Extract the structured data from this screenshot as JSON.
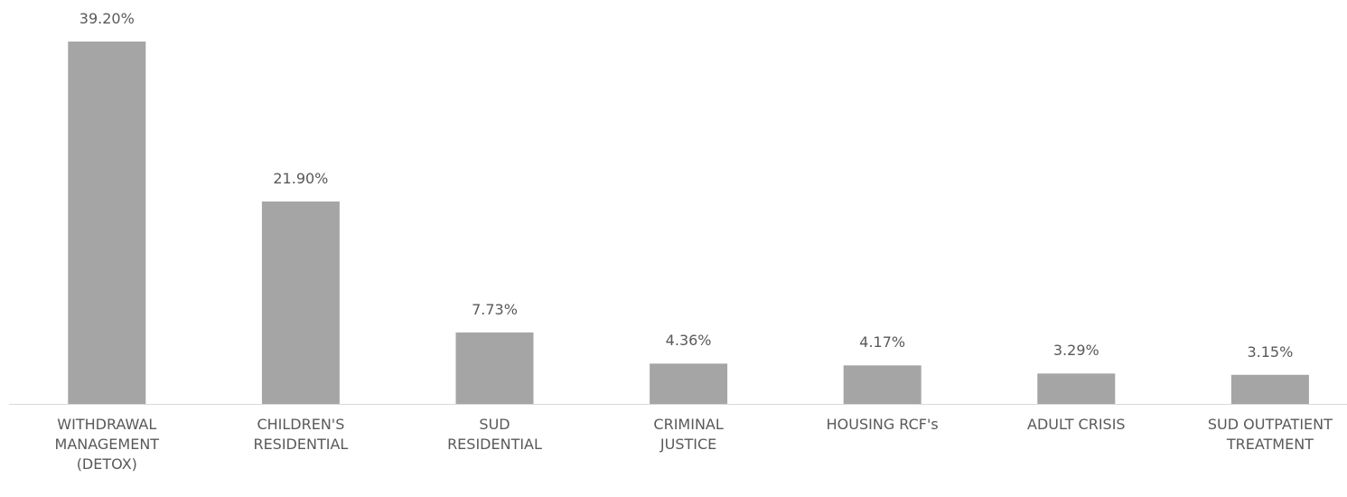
{
  "chart_data": {
    "type": "bar",
    "categories": [
      "WITHDRAWAL MANAGEMENT (DETOX)",
      "CHILDREN'S RESIDENTIAL",
      "SUD RESIDENTIAL",
      "CRIMINAL JUSTICE",
      "HOUSING RCF's",
      "ADULT CRISIS",
      "SUD OUTPATIENT TREATMENT"
    ],
    "values": [
      39.2,
      21.9,
      7.73,
      4.36,
      4.17,
      3.29,
      3.15
    ],
    "value_labels": [
      "39.20%",
      "21.90%",
      "7.73%",
      "4.36%",
      "4.17%",
      "3.29%",
      "3.15%"
    ],
    "color": "#a5a5a5"
  }
}
